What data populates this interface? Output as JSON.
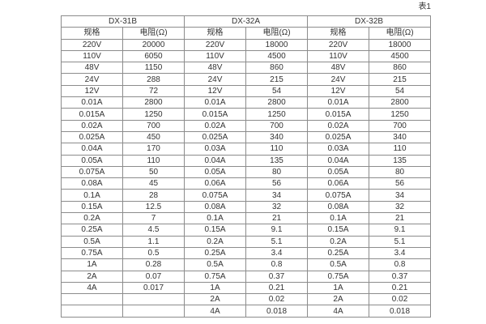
{
  "page": {
    "caption": "表1"
  },
  "table": {
    "groups": [
      {
        "name": "DX-31B",
        "col_headers": [
          "规格",
          "电阻(Ω)"
        ],
        "rows": [
          [
            "220V",
            "20000"
          ],
          [
            "110V",
            "6050"
          ],
          [
            "48V",
            "1150"
          ],
          [
            "24V",
            "288"
          ],
          [
            "12V",
            "72"
          ],
          [
            "0.01A",
            "2800"
          ],
          [
            "0.015A",
            "1250"
          ],
          [
            "0.02A",
            "700"
          ],
          [
            "0.025A",
            "450"
          ],
          [
            "0.04A",
            "170"
          ],
          [
            "0.05A",
            "110"
          ],
          [
            "0.075A",
            "50"
          ],
          [
            "0.08A",
            "45"
          ],
          [
            "0.1A",
            "28"
          ],
          [
            "0.15A",
            "12.5"
          ],
          [
            "0.2A",
            "7"
          ],
          [
            "0.25A",
            "4.5"
          ],
          [
            "0.5A",
            "1.1"
          ],
          [
            "0.75A",
            "0.5"
          ],
          [
            "1A",
            "0.28"
          ],
          [
            "2A",
            "0.07"
          ],
          [
            "4A",
            "0.017"
          ],
          [
            "",
            ""
          ],
          [
            "",
            ""
          ]
        ]
      },
      {
        "name": "DX-32A",
        "col_headers": [
          "规格",
          "电阻(Ω)"
        ],
        "rows": [
          [
            "220V",
            "18000"
          ],
          [
            "110V",
            "4500"
          ],
          [
            "48V",
            "860"
          ],
          [
            "24V",
            "215"
          ],
          [
            "12V",
            "54"
          ],
          [
            "0.01A",
            "2800"
          ],
          [
            "0.015A",
            "1250"
          ],
          [
            "0.02A",
            "700"
          ],
          [
            "0.025A",
            "340"
          ],
          [
            "0.03A",
            "110"
          ],
          [
            "0.04A",
            "135"
          ],
          [
            "0.05A",
            "80"
          ],
          [
            "0.06A",
            "56"
          ],
          [
            "0.075A",
            "34"
          ],
          [
            "0.08A",
            "32"
          ],
          [
            "0.1A",
            "21"
          ],
          [
            "0.15A",
            "9.1"
          ],
          [
            "0.2A",
            "5.1"
          ],
          [
            "0.25A",
            "3.4"
          ],
          [
            "0.5A",
            "0.8"
          ],
          [
            "0.75A",
            "0.37"
          ],
          [
            "1A",
            "0.21"
          ],
          [
            "2A",
            "0.02"
          ],
          [
            "4A",
            "0.018"
          ]
        ]
      },
      {
        "name": "DX-32B",
        "col_headers": [
          "规格",
          "电阻(Ω)"
        ],
        "rows": [
          [
            "220V",
            "18000"
          ],
          [
            "110V",
            "4500"
          ],
          [
            "48V",
            "860"
          ],
          [
            "24V",
            "215"
          ],
          [
            "12V",
            "54"
          ],
          [
            "0.01A",
            "2800"
          ],
          [
            "0.015A",
            "1250"
          ],
          [
            "0.02A",
            "700"
          ],
          [
            "0.025A",
            "340"
          ],
          [
            "0.03A",
            "110"
          ],
          [
            "0.04A",
            "135"
          ],
          [
            "0.05A",
            "80"
          ],
          [
            "0.06A",
            "56"
          ],
          [
            "0.075A",
            "34"
          ],
          [
            "0.08A",
            "32"
          ],
          [
            "0.1A",
            "21"
          ],
          [
            "0.15A",
            "9.1"
          ],
          [
            "0.2A",
            "5.1"
          ],
          [
            "0.25A",
            "3.4"
          ],
          [
            "0.5A",
            "0.8"
          ],
          [
            "0.75A",
            "0.37"
          ],
          [
            "1A",
            "0.21"
          ],
          [
            "2A",
            "0.02"
          ],
          [
            "4A",
            "0.018"
          ]
        ]
      }
    ]
  }
}
